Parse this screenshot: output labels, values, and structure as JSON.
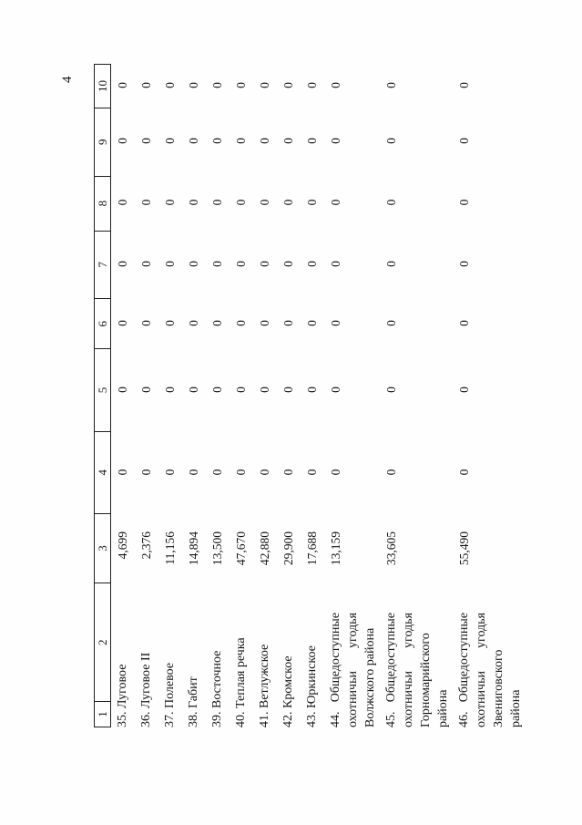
{
  "page": {
    "number": "4"
  },
  "table": {
    "headers": [
      "1",
      "2",
      "3",
      "4",
      "5",
      "6",
      "7",
      "8",
      "9",
      "10"
    ],
    "rows": [
      {
        "name": "35. Луговое",
        "area": "4,699",
        "values": [
          "0",
          "0",
          "0",
          "0",
          "0",
          "0",
          "0"
        ]
      },
      {
        "name": "36. Луговое II",
        "area": "2,376",
        "values": [
          "0",
          "0",
          "0",
          "0",
          "0",
          "0",
          "0"
        ]
      },
      {
        "name": "37. Полевое",
        "area": "11,156",
        "values": [
          "0",
          "0",
          "0",
          "0",
          "0",
          "0",
          "0"
        ]
      },
      {
        "name": "38. Габит",
        "area": "14,894",
        "values": [
          "0",
          "0",
          "0",
          "0",
          "0",
          "0",
          "0"
        ]
      },
      {
        "name": "39. Восточное",
        "area": "13,500",
        "values": [
          "0",
          "0",
          "0",
          "0",
          "0",
          "0",
          "0"
        ]
      },
      {
        "name": "40. Теплая речка",
        "area": "47,670",
        "values": [
          "0",
          "0",
          "0",
          "0",
          "0",
          "0",
          "0"
        ]
      },
      {
        "name": "41. Ветлужское",
        "area": "42,880",
        "values": [
          "0",
          "0",
          "0",
          "0",
          "0",
          "0",
          "0"
        ]
      },
      {
        "name": "42. Кромское",
        "area": "29,900",
        "values": [
          "0",
          "0",
          "0",
          "0",
          "0",
          "0",
          "0"
        ]
      },
      {
        "name": "43. Юркинское",
        "area": "17,688",
        "values": [
          "0",
          "0",
          "0",
          "0",
          "0",
          "0",
          "0"
        ]
      },
      {
        "name": "44. Общедоступные охотничьи угодья Волжского района",
        "area": "13,159",
        "values": [
          "0",
          "0",
          "0",
          "0",
          "0",
          "0",
          "0"
        ]
      },
      {
        "name": "45. Общедоступные охотничьи угодья Горномарийского района",
        "area": "33,605",
        "values": [
          "0",
          "0",
          "0",
          "0",
          "0",
          "0",
          "0"
        ]
      },
      {
        "name": "46. Общедоступные охотничьи угодья Звениговского района",
        "area": "55,490",
        "values": [
          "0",
          "0",
          "0",
          "0",
          "0",
          "0",
          "0"
        ]
      }
    ]
  }
}
